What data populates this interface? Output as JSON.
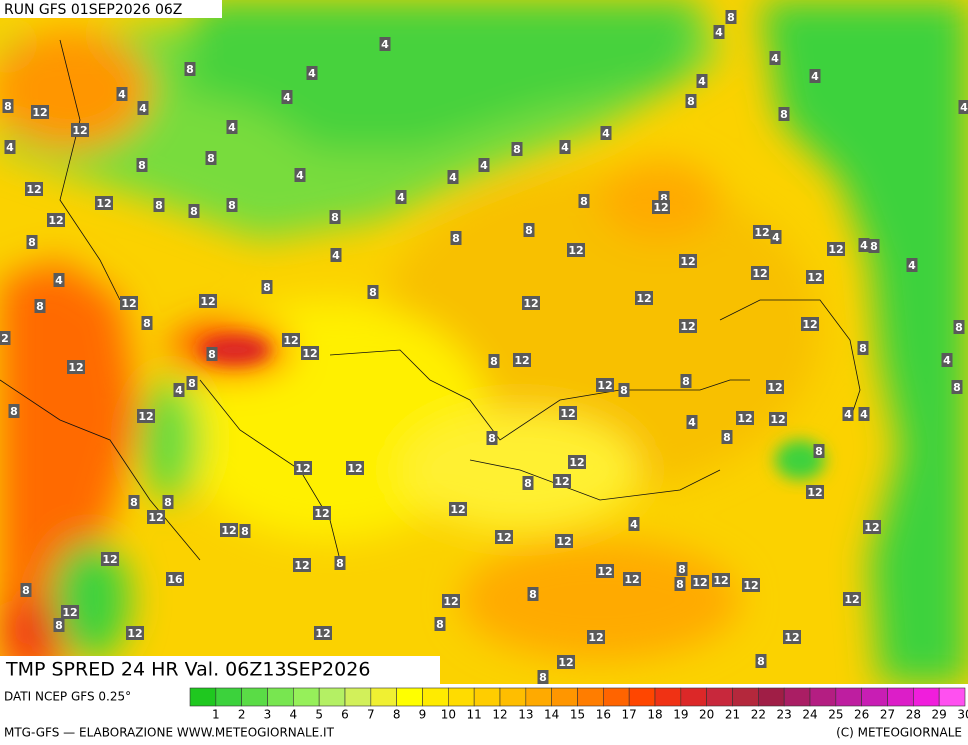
{
  "header": {
    "run": "RUN GFS 01SEP2026 06Z"
  },
  "map": {
    "title": "TMP SPRED 24 HR Val. 06Z13SEP2026",
    "contour_labels": [
      "8",
      "4",
      "4",
      "8",
      "4",
      "4",
      "4",
      "4",
      "4",
      "4",
      "4",
      "8",
      "8",
      "12",
      "12",
      "4",
      "8",
      "4",
      "4",
      "4",
      "4",
      "8",
      "8",
      "8",
      "4",
      "4",
      "12",
      "4",
      "4",
      "12",
      "8",
      "8",
      "8",
      "8",
      "8",
      "12",
      "12",
      "8",
      "8",
      "8",
      "12",
      "4",
      "12",
      "4",
      "8",
      "8",
      "4",
      "12",
      "12",
      "4",
      "12",
      "12",
      "4",
      "8",
      "8",
      "12",
      "12",
      "12",
      "8",
      "12",
      "8",
      "12",
      "12",
      "8",
      "12",
      "12",
      "2",
      "8",
      "8",
      "12",
      "8",
      "12",
      "4",
      "8",
      "4",
      "12",
      "8",
      "8",
      "12",
      "8",
      "8",
      "12",
      "12",
      "12",
      "12",
      "4",
      "4",
      "4",
      "8",
      "8",
      "8",
      "12",
      "12",
      "12",
      "8",
      "12",
      "12",
      "8",
      "8",
      "12",
      "12",
      "12",
      "12",
      "8",
      "4",
      "12",
      "12",
      "12",
      "12",
      "12",
      "8",
      "8",
      "12",
      "12",
      "8",
      "12",
      "12",
      "12",
      "16",
      "8",
      "12",
      "8",
      "12",
      "8",
      "12",
      "8",
      "12",
      "12",
      "12",
      "12",
      "12",
      "8",
      "8"
    ]
  },
  "footer": {
    "source": "DATI NCEP GFS 0.25°",
    "credit": "MTG-GFS — ELABORAZIONE WWW.METEOGIORNALE.IT",
    "copyright": "(C) METEOGIORNALE"
  },
  "legend": {
    "labels": [
      1,
      2,
      3,
      4,
      5,
      6,
      7,
      8,
      9,
      10,
      11,
      12,
      13,
      14,
      15,
      16,
      17,
      18,
      19,
      20,
      21,
      22,
      23,
      24,
      25,
      26,
      27,
      28,
      29,
      30
    ],
    "colors": [
      "#1fc81f",
      "#3cd23c",
      "#5adc46",
      "#78e650",
      "#96f05a",
      "#b4f064",
      "#d2f05a",
      "#f0f032",
      "#ffff00",
      "#ffeb00",
      "#ffdc00",
      "#ffcd00",
      "#ffbe00",
      "#ffaa00",
      "#ff9600",
      "#ff7d00",
      "#ff6400",
      "#ff4600",
      "#f03214",
      "#dc2828",
      "#c8283c",
      "#b4283c",
      "#a01e46",
      "#aa1e64",
      "#b41e82",
      "#be1ea0",
      "#c81eb4",
      "#dc1ec8",
      "#f01edc",
      "#ff50f0"
    ]
  }
}
